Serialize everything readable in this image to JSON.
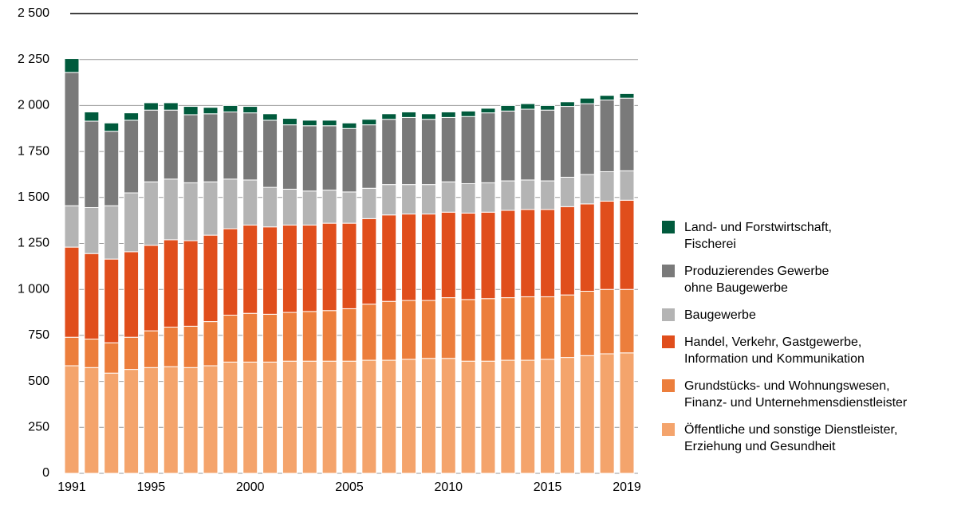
{
  "chart_data": {
    "type": "stacked_bar",
    "categories": [
      1991,
      null,
      null,
      null,
      1995,
      null,
      null,
      null,
      null,
      2000,
      null,
      null,
      null,
      null,
      2005,
      null,
      null,
      null,
      null,
      2010,
      null,
      null,
      null,
      null,
      2015,
      null,
      null,
      null,
      2019
    ],
    "series": [
      {
        "name": "Öffentliche und sonstige Dienstleister,\nErziehung und Gesundheit",
        "color": "#f4a46c",
        "values": [
          585,
          575,
          545,
          565,
          575,
          580,
          575,
          585,
          605,
          605,
          605,
          610,
          610,
          610,
          610,
          615,
          615,
          620,
          625,
          625,
          610,
          610,
          615,
          615,
          620,
          630,
          640,
          650,
          655
        ]
      },
      {
        "name": "Grundstücks- und Wohnungswesen,\nFinanz- und Unternehmensdienstleister",
        "color": "#ec7e3c",
        "values": [
          155,
          155,
          165,
          175,
          200,
          215,
          225,
          240,
          255,
          265,
          260,
          265,
          270,
          275,
          285,
          305,
          320,
          320,
          315,
          330,
          335,
          340,
          340,
          345,
          340,
          340,
          350,
          350,
          345
        ]
      },
      {
        "name": "Handel, Verkehr, Gastgewerbe,\nInformation und Kommunikation",
        "color": "#e04e1c",
        "values": [
          490,
          465,
          455,
          465,
          465,
          475,
          465,
          470,
          470,
          480,
          475,
          475,
          470,
          475,
          465,
          465,
          470,
          470,
          470,
          465,
          470,
          470,
          475,
          475,
          475,
          480,
          475,
          480,
          485
        ]
      },
      {
        "name": "Baugewerbe",
        "color": "#b4b4b4",
        "values": [
          225,
          250,
          290,
          320,
          345,
          330,
          315,
          290,
          270,
          245,
          215,
          195,
          185,
          180,
          170,
          165,
          165,
          160,
          160,
          165,
          160,
          160,
          160,
          160,
          155,
          160,
          160,
          160,
          160
        ]
      },
      {
        "name": "Produzierendes Gewerbe\nohne Baugewerbe",
        "color": "#7a7a7a",
        "values": [
          725,
          470,
          405,
          395,
          390,
          375,
          370,
          370,
          365,
          365,
          365,
          350,
          355,
          350,
          345,
          345,
          355,
          365,
          355,
          350,
          365,
          380,
          380,
          385,
          385,
          385,
          385,
          390,
          395
        ]
      },
      {
        "name": "Land- und Forstwirtschaft,\nFischerei",
        "color": "#005a3c",
        "values": [
          75,
          50,
          45,
          40,
          40,
          40,
          45,
          35,
          35,
          35,
          35,
          35,
          30,
          30,
          30,
          30,
          30,
          30,
          30,
          30,
          30,
          25,
          30,
          30,
          25,
          25,
          30,
          25,
          25
        ]
      }
    ],
    "ylim": [
      0,
      2500
    ],
    "yticks": [
      0,
      250,
      500,
      750,
      {
        "value": 1000,
        "label": "1 000"
      },
      {
        "value": 1250,
        "label": "1 250"
      },
      {
        "value": 1500,
        "label": "1 500"
      },
      {
        "value": 1750,
        "label": "1 750"
      },
      {
        "value": 2000,
        "label": "2 000"
      },
      {
        "value": 2250,
        "label": "2 250"
      },
      {
        "value": 2500,
        "label": "2 500"
      }
    ],
    "grid": true
  }
}
